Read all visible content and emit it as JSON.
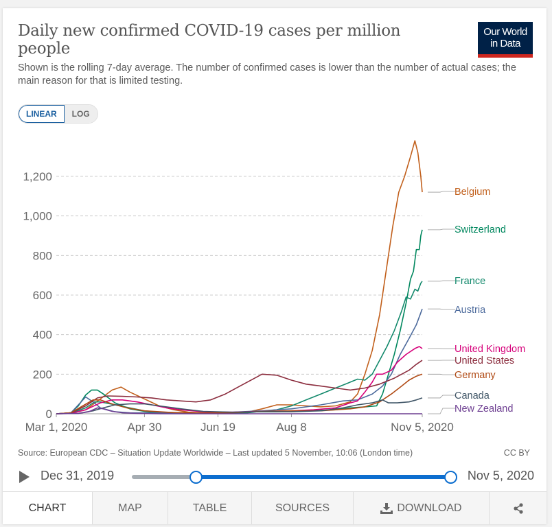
{
  "header": {
    "title": "Daily new confirmed COVID-19 cases per million people",
    "subtitle": "Shown is the rolling 7-day average. The number of confirmed cases is lower than the number of actual cases; the main reason for that is limited testing.",
    "logo_line1": "Our World",
    "logo_line2": "in Data"
  },
  "scale_toggle": {
    "linear": "LINEAR",
    "log": "LOG",
    "selected": "LINEAR"
  },
  "footer": {
    "source": "Source: European CDC – Situation Update Worldwide – Last updated 5 November, 10:06 (London time)",
    "license": "CC BY"
  },
  "timeline": {
    "start_label": "Dec 31, 2019",
    "end_label": "Nov 5, 2020",
    "play_icon": "play-icon",
    "range_start_fraction": 0.2,
    "range_end_fraction": 1.0
  },
  "tabs": [
    {
      "label": "CHART",
      "active": true
    },
    {
      "label": "MAP"
    },
    {
      "label": "TABLE"
    },
    {
      "label": "SOURCES"
    },
    {
      "label": "DOWNLOAD",
      "icon": "download-icon"
    },
    {
      "label": "",
      "icon": "share-icon"
    }
  ],
  "chart_data": {
    "type": "line",
    "title": "Daily new confirmed COVID-19 cases per million people",
    "xlabel": "",
    "ylabel": "",
    "x_unit": "days since Mar 1, 2020",
    "xlim": [
      0,
      249
    ],
    "ylim": [
      0,
      1200
    ],
    "x_ticks": [
      {
        "day": 0,
        "label": "Mar 1, 2020"
      },
      {
        "day": 60,
        "label": "Apr 30"
      },
      {
        "day": 110,
        "label": "Jun 19"
      },
      {
        "day": 160,
        "label": "Aug 8"
      },
      {
        "day": 249,
        "label": "Nov 5, 2020"
      }
    ],
    "y_ticks": [
      {
        "value": 0,
        "label": "0"
      },
      {
        "value": 200,
        "label": "200"
      },
      {
        "value": 400,
        "label": "400"
      },
      {
        "value": 600,
        "label": "600"
      },
      {
        "value": 800,
        "label": "800"
      },
      {
        "value": 1000,
        "label": "1,000"
      },
      {
        "value": 1200,
        "label": "1,200"
      }
    ],
    "grid": "horizontal-dashed",
    "legend": "right (end-of-line labels)",
    "series": [
      {
        "name": "Belgium",
        "color": "#c15f1b",
        "points": [
          [
            0,
            0
          ],
          [
            10,
            2
          ],
          [
            20,
            20
          ],
          [
            30,
            75
          ],
          [
            38,
            120
          ],
          [
            44,
            135
          ],
          [
            50,
            110
          ],
          [
            60,
            75
          ],
          [
            70,
            40
          ],
          [
            80,
            20
          ],
          [
            90,
            8
          ],
          [
            100,
            4
          ],
          [
            110,
            5
          ],
          [
            120,
            5
          ],
          [
            130,
            8
          ],
          [
            140,
            25
          ],
          [
            150,
            45
          ],
          [
            160,
            45
          ],
          [
            170,
            40
          ],
          [
            180,
            35
          ],
          [
            190,
            40
          ],
          [
            200,
            60
          ],
          [
            205,
            100
          ],
          [
            210,
            200
          ],
          [
            215,
            320
          ],
          [
            220,
            500
          ],
          [
            225,
            750
          ],
          [
            229,
            950
          ],
          [
            233,
            1120
          ],
          [
            237,
            1200
          ],
          [
            241,
            1300
          ],
          [
            244,
            1380
          ],
          [
            246,
            1320
          ],
          [
            248,
            1200
          ],
          [
            249,
            1120
          ]
        ],
        "label_value": 1120
      },
      {
        "name": "Switzerland",
        "color": "#00875e",
        "points": [
          [
            0,
            0
          ],
          [
            10,
            5
          ],
          [
            15,
            40
          ],
          [
            20,
            95
          ],
          [
            24,
            120
          ],
          [
            28,
            120
          ],
          [
            32,
            100
          ],
          [
            40,
            55
          ],
          [
            50,
            25
          ],
          [
            60,
            12
          ],
          [
            70,
            5
          ],
          [
            90,
            4
          ],
          [
            110,
            4
          ],
          [
            130,
            10
          ],
          [
            150,
            10
          ],
          [
            170,
            15
          ],
          [
            190,
            20
          ],
          [
            200,
            30
          ],
          [
            210,
            35
          ],
          [
            218,
            40
          ],
          [
            222,
            100
          ],
          [
            226,
            200
          ],
          [
            230,
            300
          ],
          [
            234,
            420
          ],
          [
            238,
            560
          ],
          [
            241,
            680
          ],
          [
            243,
            720
          ],
          [
            245,
            830
          ],
          [
            247,
            830
          ],
          [
            248,
            900
          ],
          [
            249,
            930
          ]
        ],
        "label_value": 930
      },
      {
        "name": "France",
        "color": "#13896c",
        "points": [
          [
            0,
            0
          ],
          [
            10,
            3
          ],
          [
            20,
            30
          ],
          [
            26,
            60
          ],
          [
            30,
            60
          ],
          [
            40,
            45
          ],
          [
            50,
            30
          ],
          [
            60,
            15
          ],
          [
            70,
            8
          ],
          [
            90,
            5
          ],
          [
            110,
            4
          ],
          [
            130,
            5
          ],
          [
            150,
            20
          ],
          [
            160,
            40
          ],
          [
            170,
            70
          ],
          [
            180,
            100
          ],
          [
            190,
            130
          ],
          [
            200,
            160
          ],
          [
            205,
            175
          ],
          [
            210,
            170
          ],
          [
            215,
            200
          ],
          [
            220,
            270
          ],
          [
            225,
            340
          ],
          [
            230,
            420
          ],
          [
            235,
            520
          ],
          [
            238,
            590
          ],
          [
            241,
            580
          ],
          [
            244,
            630
          ],
          [
            246,
            620
          ],
          [
            248,
            660
          ],
          [
            249,
            670
          ]
        ],
        "label_value": 670
      },
      {
        "name": "Austria",
        "color": "#4c6a9c",
        "points": [
          [
            0,
            0
          ],
          [
            10,
            5
          ],
          [
            15,
            45
          ],
          [
            20,
            85
          ],
          [
            25,
            60
          ],
          [
            30,
            30
          ],
          [
            40,
            10
          ],
          [
            50,
            5
          ],
          [
            70,
            4
          ],
          [
            100,
            4
          ],
          [
            120,
            8
          ],
          [
            140,
            15
          ],
          [
            160,
            25
          ],
          [
            180,
            45
          ],
          [
            195,
            65
          ],
          [
            205,
            70
          ],
          [
            215,
            100
          ],
          [
            222,
            140
          ],
          [
            228,
            200
          ],
          [
            234,
            300
          ],
          [
            240,
            380
          ],
          [
            245,
            450
          ],
          [
            249,
            530
          ]
        ],
        "label_value": 530
      },
      {
        "name": "United Kingdom",
        "color": "#d6007a",
        "points": [
          [
            0,
            0
          ],
          [
            10,
            2
          ],
          [
            20,
            20
          ],
          [
            30,
            55
          ],
          [
            38,
            70
          ],
          [
            45,
            70
          ],
          [
            55,
            60
          ],
          [
            65,
            45
          ],
          [
            75,
            30
          ],
          [
            85,
            20
          ],
          [
            100,
            10
          ],
          [
            120,
            8
          ],
          [
            140,
            12
          ],
          [
            160,
            15
          ],
          [
            175,
            20
          ],
          [
            190,
            30
          ],
          [
            200,
            55
          ],
          [
            205,
            65
          ],
          [
            210,
            110
          ],
          [
            215,
            160
          ],
          [
            218,
            200
          ],
          [
            222,
            200
          ],
          [
            228,
            220
          ],
          [
            232,
            260
          ],
          [
            238,
            300
          ],
          [
            244,
            330
          ],
          [
            247,
            340
          ],
          [
            249,
            330
          ]
        ],
        "label_value": 330
      },
      {
        "name": "United States",
        "color": "#8b2c3d",
        "points": [
          [
            0,
            0
          ],
          [
            10,
            5
          ],
          [
            20,
            40
          ],
          [
            28,
            80
          ],
          [
            35,
            90
          ],
          [
            45,
            88
          ],
          [
            55,
            85
          ],
          [
            65,
            80
          ],
          [
            75,
            70
          ],
          [
            85,
            65
          ],
          [
            95,
            60
          ],
          [
            105,
            70
          ],
          [
            115,
            100
          ],
          [
            125,
            140
          ],
          [
            135,
            180
          ],
          [
            140,
            200
          ],
          [
            150,
            195
          ],
          [
            160,
            170
          ],
          [
            170,
            150
          ],
          [
            180,
            140
          ],
          [
            190,
            130
          ],
          [
            200,
            120
          ],
          [
            210,
            130
          ],
          [
            220,
            150
          ],
          [
            230,
            180
          ],
          [
            240,
            220
          ],
          [
            245,
            250
          ],
          [
            249,
            270
          ]
        ],
        "label_value": 270
      },
      {
        "name": "Germany",
        "color": "#b04a14",
        "points": [
          [
            0,
            0
          ],
          [
            10,
            5
          ],
          [
            18,
            40
          ],
          [
            25,
            70
          ],
          [
            30,
            70
          ],
          [
            38,
            50
          ],
          [
            48,
            30
          ],
          [
            60,
            15
          ],
          [
            80,
            6
          ],
          [
            100,
            4
          ],
          [
            120,
            5
          ],
          [
            140,
            12
          ],
          [
            160,
            15
          ],
          [
            180,
            15
          ],
          [
            200,
            25
          ],
          [
            210,
            35
          ],
          [
            220,
            60
          ],
          [
            228,
            100
          ],
          [
            235,
            140
          ],
          [
            240,
            170
          ],
          [
            245,
            190
          ],
          [
            249,
            200
          ]
        ],
        "label_value": 200
      },
      {
        "name": "Canada",
        "color": "#3f5566",
        "points": [
          [
            0,
            0
          ],
          [
            15,
            2
          ],
          [
            25,
            15
          ],
          [
            32,
            30
          ],
          [
            40,
            45
          ],
          [
            50,
            50
          ],
          [
            60,
            50
          ],
          [
            70,
            40
          ],
          [
            85,
            25
          ],
          [
            100,
            12
          ],
          [
            120,
            8
          ],
          [
            140,
            10
          ],
          [
            160,
            10
          ],
          [
            180,
            15
          ],
          [
            195,
            30
          ],
          [
            205,
            45
          ],
          [
            215,
            55
          ],
          [
            222,
            70
          ],
          [
            226,
            55
          ],
          [
            232,
            55
          ],
          [
            240,
            60
          ],
          [
            245,
            70
          ],
          [
            249,
            80
          ]
        ],
        "label_value": 80
      },
      {
        "name": "New Zealand",
        "color": "#6d3e91",
        "points": [
          [
            0,
            0
          ],
          [
            15,
            2
          ],
          [
            22,
            10
          ],
          [
            28,
            30
          ],
          [
            32,
            25
          ],
          [
            38,
            12
          ],
          [
            45,
            5
          ],
          [
            55,
            2
          ],
          [
            70,
            0
          ],
          [
            249,
            0
          ]
        ],
        "label_value": 0
      }
    ],
    "label_positions_note": "labels stacked to avoid overlap"
  }
}
